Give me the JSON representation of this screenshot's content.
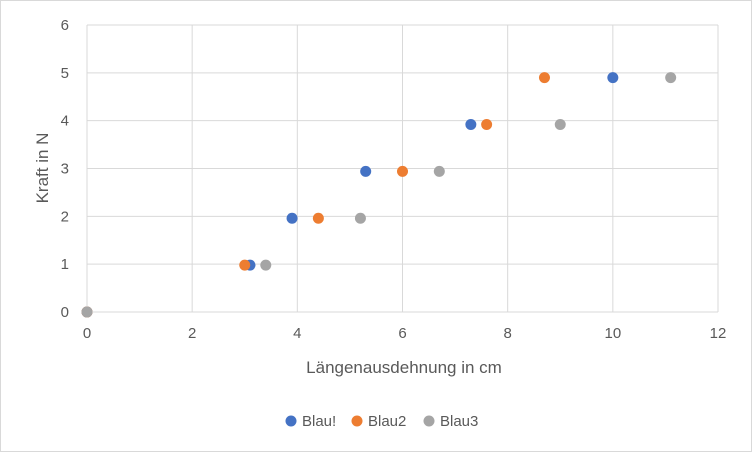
{
  "chart_data": {
    "type": "scatter",
    "title": "",
    "xlabel": "Längenausdehnung in cm",
    "ylabel": "Kraft in N",
    "xlim": [
      0,
      12
    ],
    "ylim": [
      0,
      6
    ],
    "xticks": [
      0,
      2,
      4,
      6,
      8,
      10,
      12
    ],
    "yticks": [
      0,
      1,
      2,
      3,
      4,
      5,
      6
    ],
    "grid": true,
    "legend_position": "bottom",
    "series": [
      {
        "name": "Blau!",
        "color": "#4472c4",
        "points": [
          [
            0,
            0
          ],
          [
            3.1,
            0.98
          ],
          [
            3.9,
            1.96
          ],
          [
            5.3,
            2.94
          ],
          [
            7.3,
            3.92
          ],
          [
            10,
            4.9
          ]
        ]
      },
      {
        "name": "Blau2",
        "color": "#ed7d31",
        "points": [
          [
            0,
            0
          ],
          [
            3.0,
            0.98
          ],
          [
            4.4,
            1.96
          ],
          [
            6.0,
            2.94
          ],
          [
            7.6,
            3.92
          ],
          [
            8.7,
            4.9
          ]
        ]
      },
      {
        "name": "Blau3",
        "color": "#a5a5a5",
        "points": [
          [
            0,
            0
          ],
          [
            3.4,
            0.98
          ],
          [
            5.2,
            1.96
          ],
          [
            6.7,
            2.94
          ],
          [
            9.0,
            3.92
          ],
          [
            11.1,
            4.9
          ]
        ]
      }
    ]
  }
}
